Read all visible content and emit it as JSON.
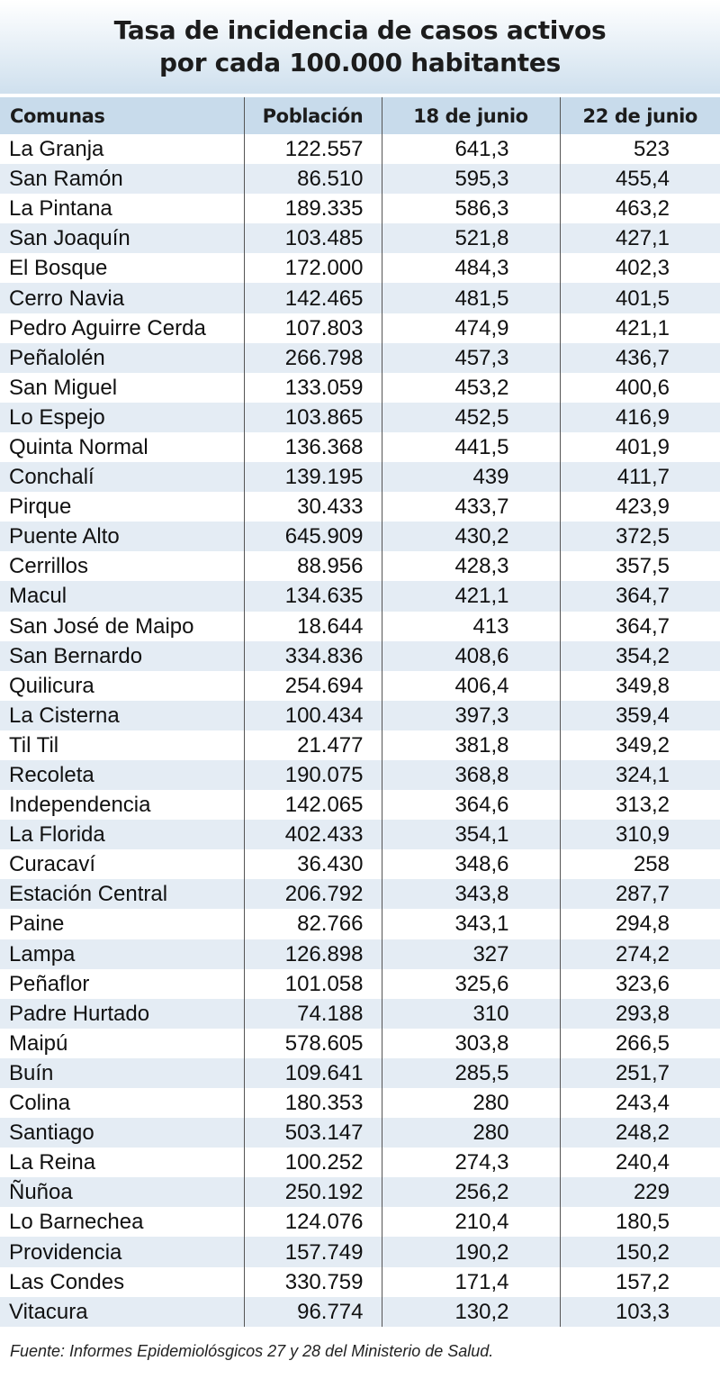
{
  "title": {
    "line1": "Tasa de incidencia de casos activos",
    "line2": "por cada 100.000 habitantes"
  },
  "table": {
    "headers": [
      "Comunas",
      "Población",
      "18 de junio",
      "22 de junio"
    ],
    "rows": [
      [
        "La Granja",
        "122.557",
        "641,3",
        "523"
      ],
      [
        "San Ramón",
        "86.510",
        "595,3",
        "455,4"
      ],
      [
        "La Pintana",
        "189.335",
        "586,3",
        "463,2"
      ],
      [
        "San Joaquín",
        "103.485",
        "521,8",
        "427,1"
      ],
      [
        "El Bosque",
        "172.000",
        "484,3",
        "402,3"
      ],
      [
        "Cerro Navia",
        "142.465",
        "481,5",
        "401,5"
      ],
      [
        "Pedro Aguirre Cerda",
        "107.803",
        "474,9",
        "421,1"
      ],
      [
        "Peñalolén",
        "266.798",
        "457,3",
        "436,7"
      ],
      [
        "San Miguel",
        "133.059",
        "453,2",
        "400,6"
      ],
      [
        "Lo Espejo",
        "103.865",
        "452,5",
        "416,9"
      ],
      [
        "Quinta Normal",
        "136.368",
        "441,5",
        "401,9"
      ],
      [
        "Conchalí",
        "139.195",
        "439",
        "411,7"
      ],
      [
        "Pirque",
        "30.433",
        "433,7",
        "423,9"
      ],
      [
        "Puente Alto",
        "645.909",
        "430,2",
        "372,5"
      ],
      [
        "Cerrillos",
        "88.956",
        "428,3",
        "357,5"
      ],
      [
        "Macul",
        "134.635",
        "421,1",
        "364,7"
      ],
      [
        "San José de Maipo",
        "18.644",
        "413",
        "364,7"
      ],
      [
        "San Bernardo",
        "334.836",
        "408,6",
        "354,2"
      ],
      [
        "Quilicura",
        "254.694",
        "406,4",
        "349,8"
      ],
      [
        "La Cisterna",
        "100.434",
        "397,3",
        "359,4"
      ],
      [
        "Til Til",
        "21.477",
        "381,8",
        "349,2"
      ],
      [
        "Recoleta",
        "190.075",
        "368,8",
        "324,1"
      ],
      [
        "Independencia",
        "142.065",
        "364,6",
        "313,2"
      ],
      [
        "La Florida",
        "402.433",
        "354,1",
        "310,9"
      ],
      [
        "Curacaví",
        "36.430",
        "348,6",
        "258"
      ],
      [
        "Estación Central",
        "206.792",
        "343,8",
        "287,7"
      ],
      [
        "Paine",
        "82.766",
        "343,1",
        "294,8"
      ],
      [
        "Lampa",
        "126.898",
        "327",
        "274,2"
      ],
      [
        "Peñaflor",
        "101.058",
        "325,6",
        "323,6"
      ],
      [
        "Padre Hurtado",
        "74.188",
        "310",
        "293,8"
      ],
      [
        "Maipú",
        "578.605",
        "303,8",
        "266,5"
      ],
      [
        "Buín",
        "109.641",
        "285,5",
        "251,7"
      ],
      [
        "Colina",
        "180.353",
        "280",
        "243,4"
      ],
      [
        "Santiago",
        "503.147",
        "280",
        "248,2"
      ],
      [
        "La Reina",
        "100.252",
        "274,3",
        "240,4"
      ],
      [
        "Ñuñoa",
        "250.192",
        "256,2",
        "229"
      ],
      [
        "Lo Barnechea",
        "124.076",
        "210,4",
        "180,5"
      ],
      [
        "Providencia",
        "157.749",
        "190,2",
        "150,2"
      ],
      [
        "Las Condes",
        "330.759",
        "171,4",
        "157,2"
      ],
      [
        "Vitacura",
        "96.774",
        "130,2",
        "103,3"
      ]
    ]
  },
  "source": "Fuente: Informes Epidemiolósgicos 27 y 28 del Ministerio de Salud.",
  "colors": {
    "header_band": "#c8dbeb",
    "stripe": "#e4ecf4",
    "title_gradient_bottom": "#cfe0ee"
  }
}
